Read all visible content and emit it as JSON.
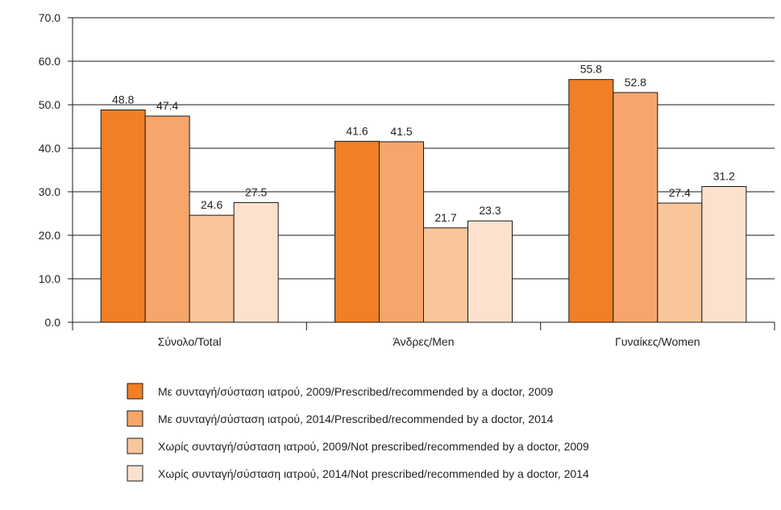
{
  "chart_data": {
    "type": "bar",
    "title": "",
    "xlabel": "",
    "ylabel": "",
    "ylim": [
      0,
      70
    ],
    "yticks": [
      "0.0",
      "10.0",
      "20.0",
      "30.0",
      "40.0",
      "50.0",
      "60.0",
      "70.0"
    ],
    "grid": true,
    "legend_position": "bottom",
    "categories": [
      "Σύνολο/Total",
      "Άνδρες/Men",
      "Γυναίκες/Women"
    ],
    "series": [
      {
        "name": "Με συνταγή/σύσταση ιατρού, 2009/Prescribed/recommended by a doctor, 2009",
        "color": "#F07F26",
        "values": [
          48.8,
          41.6,
          55.8
        ],
        "labels": [
          "48.8",
          "41.6",
          "55.8"
        ]
      },
      {
        "name": "Με συνταγή/σύσταση ιατρού, 2014/Prescribed/recommended by a doctor, 2014",
        "color": "#F6A66A",
        "values": [
          47.4,
          41.5,
          52.8
        ],
        "labels": [
          "47.4",
          "41.5",
          "52.8"
        ]
      },
      {
        "name": "Χωρίς συνταγή/σύσταση ιατρού, 2009/Not prescribed/recommended by a doctor, 2009",
        "color": "#F9C69C",
        "values": [
          24.6,
          21.7,
          27.4
        ],
        "labels": [
          "24.6",
          "21.7",
          "27.4"
        ]
      },
      {
        "name": "Χωρίς συνταγή/σύσταση ιατρού, 2014/Not prescribed/recommended by a doctor, 2014",
        "color": "#FCE2CE",
        "values": [
          27.5,
          23.3,
          31.2
        ],
        "labels": [
          "27.5",
          "23.3",
          "31.2"
        ]
      }
    ]
  }
}
